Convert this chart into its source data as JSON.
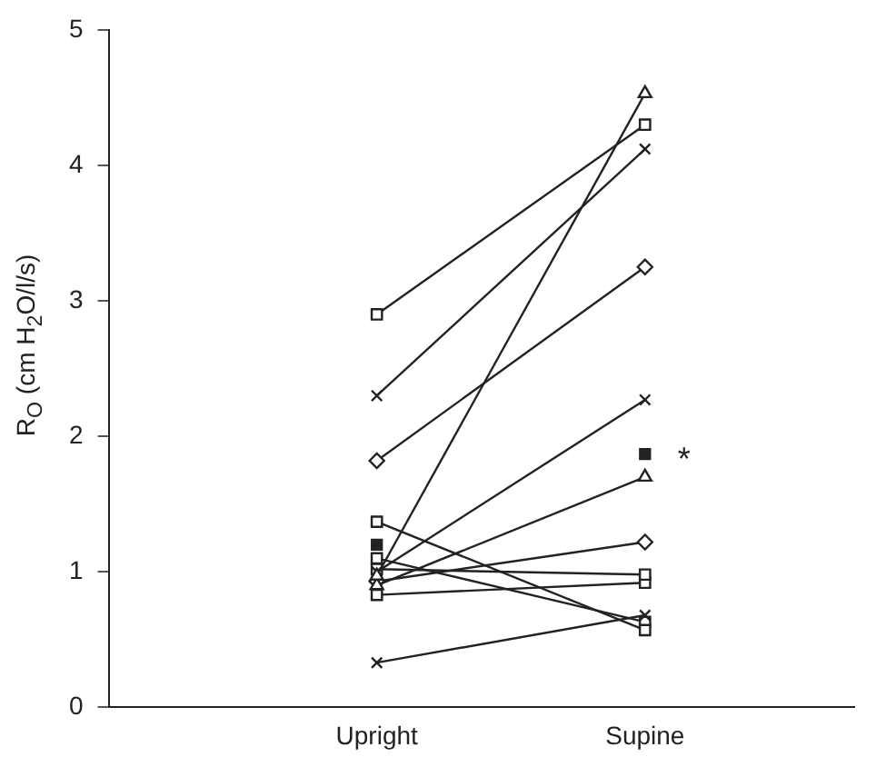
{
  "chart_data": {
    "type": "line",
    "ylabel": "R$_{O}$ (cm H$_{2}$O/l/s)",
    "categories": [
      "Upright",
      "Supine"
    ],
    "ylim": [
      0,
      5
    ],
    "yticks": [
      0,
      1,
      2,
      3,
      4,
      5
    ],
    "grid": false,
    "legend": false,
    "series": [
      {
        "color": "#222222",
        "marker": "square",
        "values": [
          2.9,
          4.3
        ]
      },
      {
        "color": "#222222",
        "marker": "cross",
        "values": [
          2.3,
          4.12
        ]
      },
      {
        "color": "#222222",
        "marker": "diamond",
        "values": [
          1.82,
          3.25
        ]
      },
      {
        "color": "#222222",
        "marker": "triangle",
        "values": [
          0.97,
          4.53
        ]
      },
      {
        "color": "#222222",
        "marker": "cross",
        "values": [
          1.0,
          2.27
        ]
      },
      {
        "color": "#222222",
        "marker": "triangle",
        "values": [
          0.9,
          1.7
        ]
      },
      {
        "color": "#222222",
        "marker": "diamond",
        "values": [
          0.93,
          1.22
        ]
      },
      {
        "color": "#222222",
        "marker": "square",
        "values": [
          1.02,
          0.98
        ]
      },
      {
        "color": "#222222",
        "marker": "square",
        "values": [
          0.83,
          0.92
        ]
      },
      {
        "color": "#222222",
        "marker": "cross",
        "values": [
          0.33,
          0.68
        ]
      },
      {
        "color": "#222222",
        "marker": "square",
        "values": [
          1.37,
          0.57
        ]
      },
      {
        "color": "#222222",
        "marker": "square",
        "values": [
          1.1,
          0.63
        ]
      },
      {
        "type": "scatter",
        "x": [
          "Upright",
          "Supine"
        ],
        "color": "#222222",
        "marker": "square",
        "values": [
          1.2,
          1.87
        ]
      }
    ],
    "annotations": [
      {
        "text": "*",
        "x": "Supine",
        "y": 1.87
      }
    ]
  }
}
